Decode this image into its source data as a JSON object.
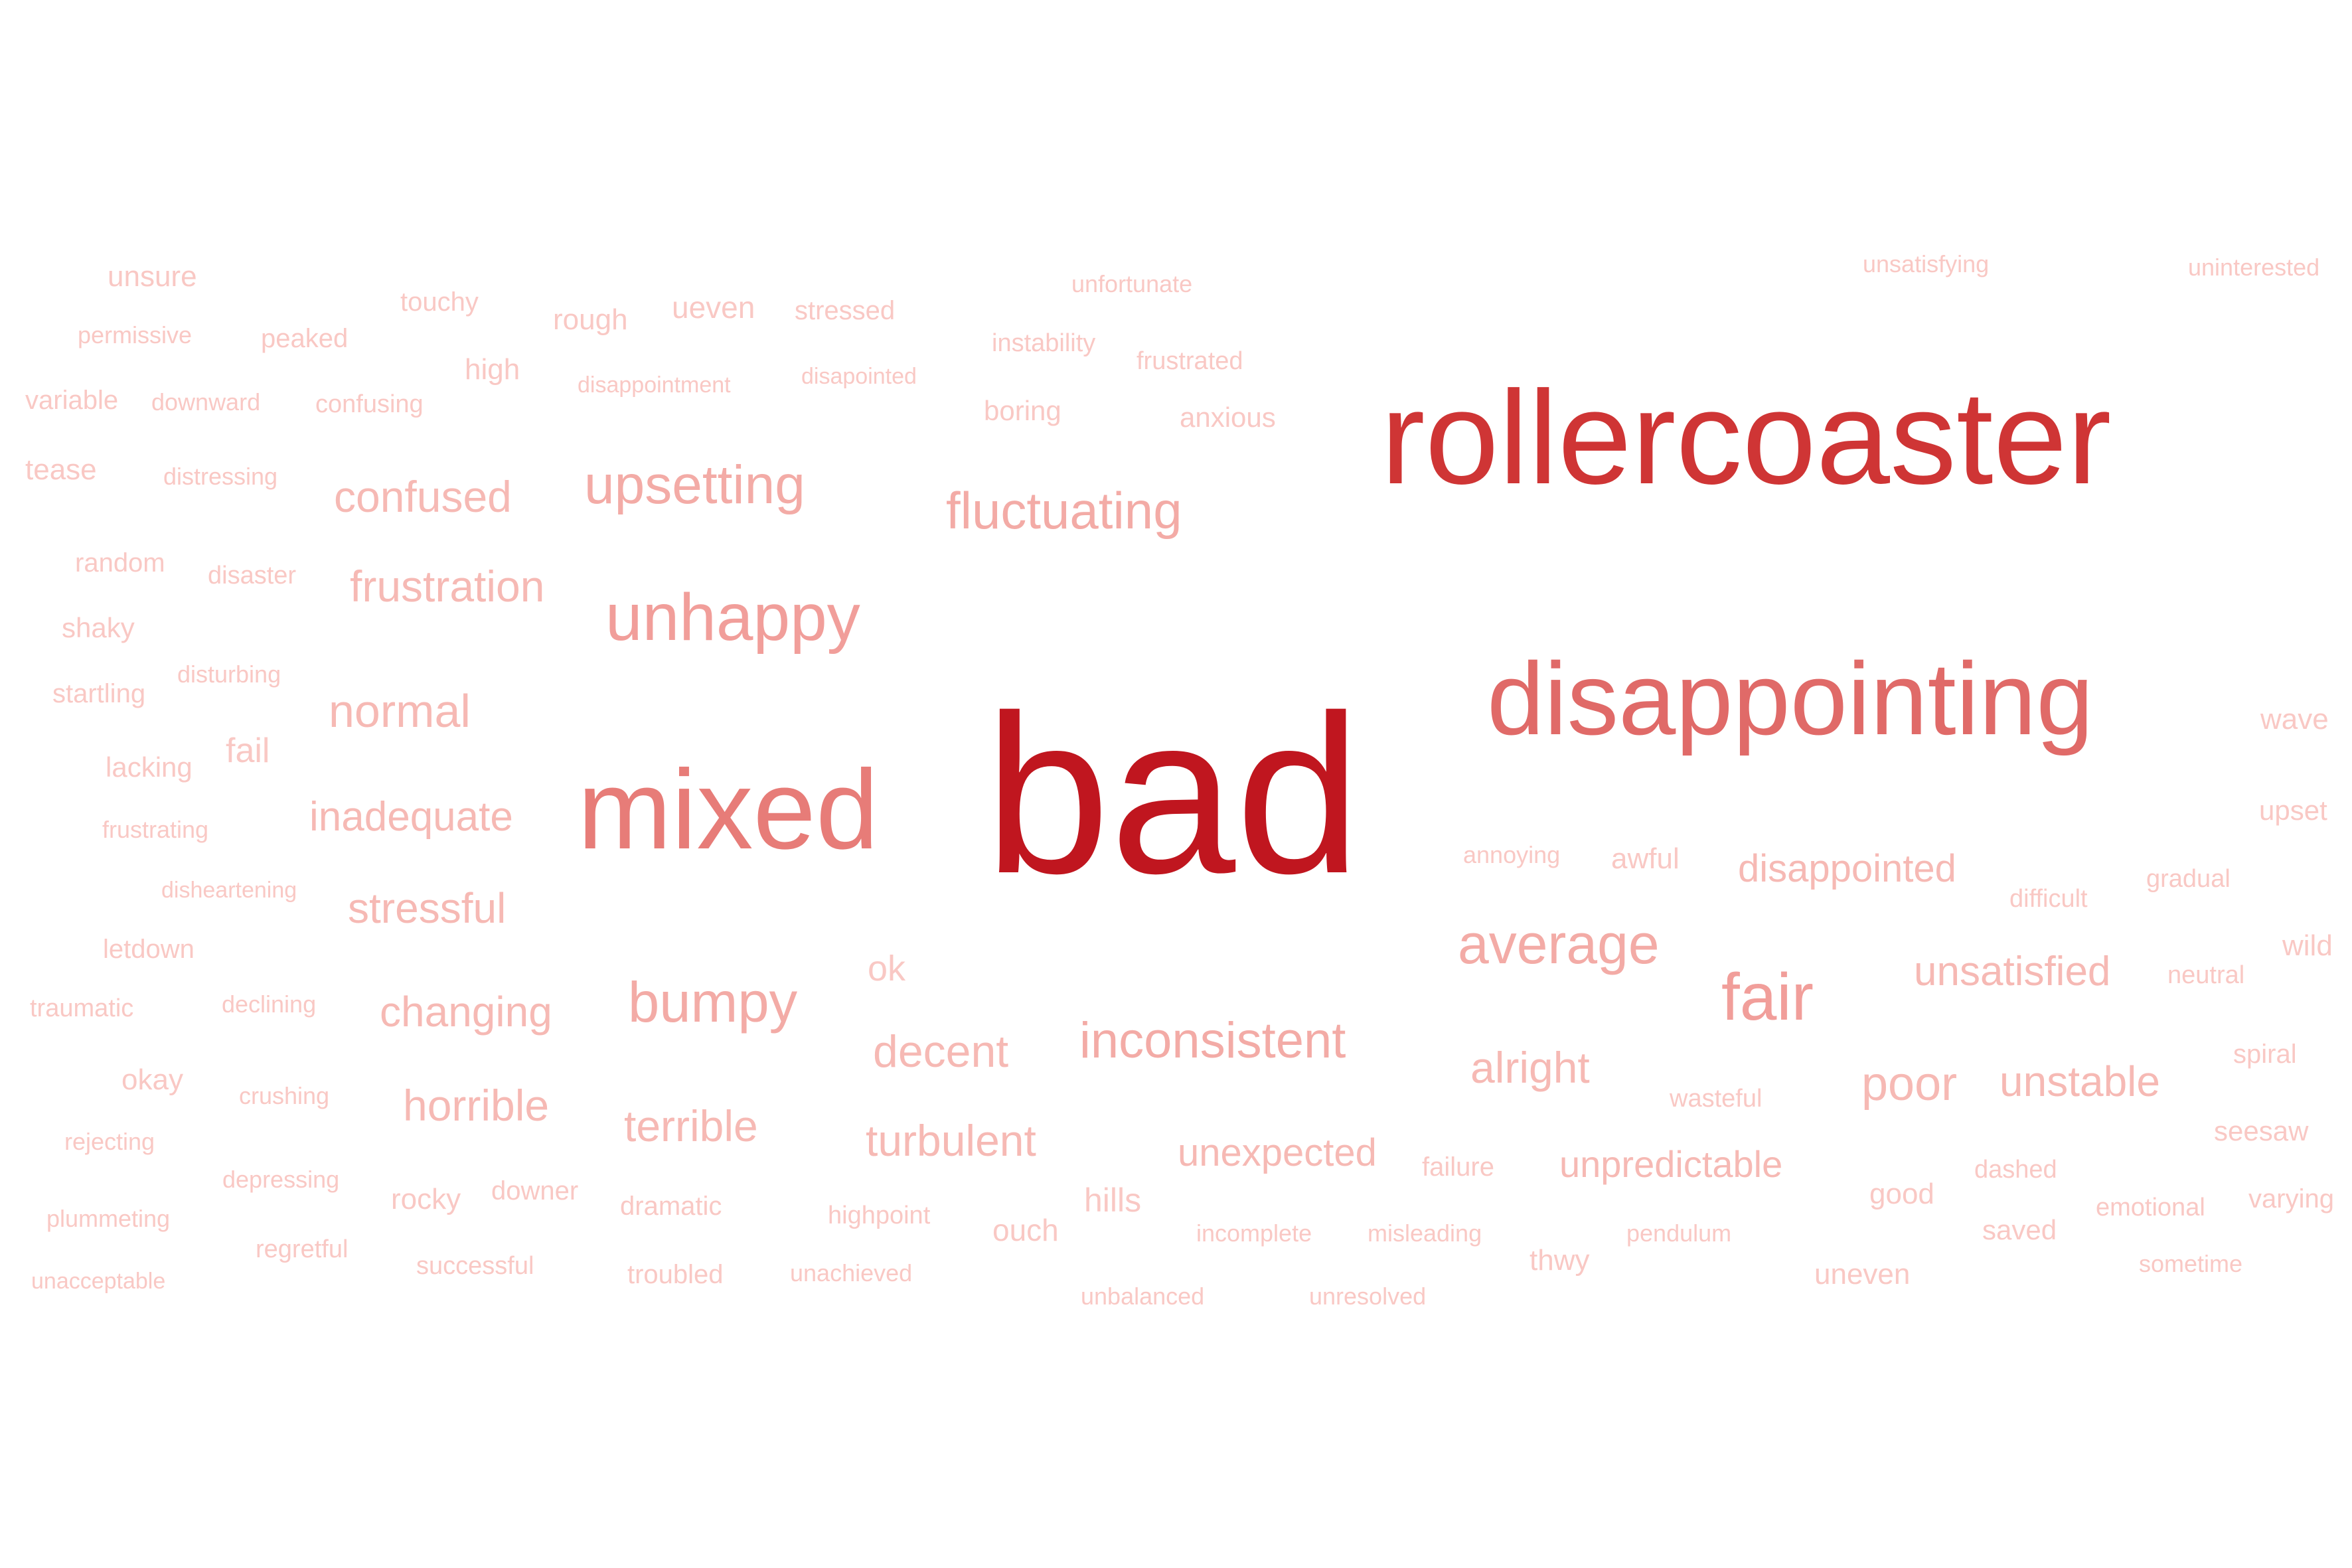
{
  "word_cloud": {
    "words": [
      {
        "text": "bad",
        "color": "#c0161f"
      },
      {
        "text": "rollercoaster",
        "color": "#cf3535"
      },
      {
        "text": "disappointing",
        "color": "#e06a68"
      },
      {
        "text": "mixed",
        "color": "#e77c78"
      },
      {
        "text": "unhappy",
        "color": "#f19e9a"
      },
      {
        "text": "fluctuating",
        "color": "#f3aba6"
      },
      {
        "text": "upsetting",
        "color": "#f3aba6"
      },
      {
        "text": "fair",
        "color": "#f19e9a"
      },
      {
        "text": "average",
        "color": "#f3aba6"
      },
      {
        "text": "bumpy",
        "color": "#f3aba6"
      },
      {
        "text": "inconsistent",
        "color": "#f3aba6"
      },
      {
        "text": "confused",
        "color": "#f6b9b4"
      },
      {
        "text": "frustration",
        "color": "#f6b9b4"
      },
      {
        "text": "normal",
        "color": "#f6b9b4"
      },
      {
        "text": "inadequate",
        "color": "#f6b9b4"
      },
      {
        "text": "stressful",
        "color": "#f6b9b4"
      },
      {
        "text": "changing",
        "color": "#f6b9b4"
      },
      {
        "text": "horrible",
        "color": "#f6b9b4"
      },
      {
        "text": "terrible",
        "color": "#f6b9b4"
      },
      {
        "text": "decent",
        "color": "#f6b9b4"
      },
      {
        "text": "turbulent",
        "color": "#f6b9b4"
      },
      {
        "text": "unexpected",
        "color": "#f6b9b4"
      },
      {
        "text": "unpredictable",
        "color": "#f6b9b4"
      },
      {
        "text": "alright",
        "color": "#f6b9b4"
      },
      {
        "text": "poor",
        "color": "#f6b9b4"
      },
      {
        "text": "unstable",
        "color": "#f6b9b4"
      },
      {
        "text": "unsatisfied",
        "color": "#f6b9b4"
      },
      {
        "text": "disappointed",
        "color": "#f6b9b4"
      },
      {
        "text": "unsure",
        "color": "#f9c8c4"
      },
      {
        "text": "touchy",
        "color": "#f9c8c4"
      },
      {
        "text": "rough",
        "color": "#f9c8c4"
      },
      {
        "text": "ueven",
        "color": "#f9c8c4"
      },
      {
        "text": "stressed",
        "color": "#f9c8c4"
      },
      {
        "text": "unfortunate",
        "color": "#f9c8c4"
      },
      {
        "text": "unsatisfying",
        "color": "#f9c8c4"
      },
      {
        "text": "uninterested",
        "color": "#f9c8c4"
      },
      {
        "text": "permissive",
        "color": "#f9c8c4"
      },
      {
        "text": "peaked",
        "color": "#f9c8c4"
      },
      {
        "text": "high",
        "color": "#f9c8c4"
      },
      {
        "text": "instability",
        "color": "#f9c8c4"
      },
      {
        "text": "frustrated",
        "color": "#f9c8c4"
      },
      {
        "text": "disappointment",
        "color": "#f9c8c4"
      },
      {
        "text": "disapointed",
        "color": "#f9c8c4"
      },
      {
        "text": "variable",
        "color": "#f9c8c4"
      },
      {
        "text": "downward",
        "color": "#f9c8c4"
      },
      {
        "text": "confusing",
        "color": "#f9c8c4"
      },
      {
        "text": "boring",
        "color": "#f9c8c4"
      },
      {
        "text": "anxious",
        "color": "#f9c8c4"
      },
      {
        "text": "tease",
        "color": "#f9c8c4"
      },
      {
        "text": "distressing",
        "color": "#f9c8c4"
      },
      {
        "text": "random",
        "color": "#f9c8c4"
      },
      {
        "text": "disaster",
        "color": "#f9c8c4"
      },
      {
        "text": "shaky",
        "color": "#f9c8c4"
      },
      {
        "text": "disturbing",
        "color": "#f9c8c4"
      },
      {
        "text": "startling",
        "color": "#f9c8c4"
      },
      {
        "text": "fail",
        "color": "#f9c8c4"
      },
      {
        "text": "lacking",
        "color": "#f9c8c4"
      },
      {
        "text": "frustrating",
        "color": "#f9c8c4"
      },
      {
        "text": "disheartening",
        "color": "#f9c8c4"
      },
      {
        "text": "letdown",
        "color": "#f9c8c4"
      },
      {
        "text": "traumatic",
        "color": "#f9c8c4"
      },
      {
        "text": "declining",
        "color": "#f9c8c4"
      },
      {
        "text": "okay",
        "color": "#f9c8c4"
      },
      {
        "text": "crushing",
        "color": "#f9c8c4"
      },
      {
        "text": "rejecting",
        "color": "#f9c8c4"
      },
      {
        "text": "depressing",
        "color": "#f9c8c4"
      },
      {
        "text": "rocky",
        "color": "#f9c8c4"
      },
      {
        "text": "downer",
        "color": "#f9c8c4"
      },
      {
        "text": "plummeting",
        "color": "#f9c8c4"
      },
      {
        "text": "regretful",
        "color": "#f9c8c4"
      },
      {
        "text": "successful",
        "color": "#f9c8c4"
      },
      {
        "text": "unacceptable",
        "color": "#f9c8c4"
      },
      {
        "text": "ok",
        "color": "#f9c8c4"
      },
      {
        "text": "dramatic",
        "color": "#f9c8c4"
      },
      {
        "text": "highpoint",
        "color": "#f9c8c4"
      },
      {
        "text": "troubled",
        "color": "#f9c8c4"
      },
      {
        "text": "unachieved",
        "color": "#f9c8c4"
      },
      {
        "text": "ouch",
        "color": "#f9c8c4"
      },
      {
        "text": "hills",
        "color": "#f9c8c4"
      },
      {
        "text": "incomplete",
        "color": "#f9c8c4"
      },
      {
        "text": "misleading",
        "color": "#f9c8c4"
      },
      {
        "text": "unbalanced",
        "color": "#f9c8c4"
      },
      {
        "text": "unresolved",
        "color": "#f9c8c4"
      },
      {
        "text": "failure",
        "color": "#f9c8c4"
      },
      {
        "text": "wasteful",
        "color": "#f9c8c4"
      },
      {
        "text": "thwy",
        "color": "#f9c8c4"
      },
      {
        "text": "pendulum",
        "color": "#f9c8c4"
      },
      {
        "text": "uneven",
        "color": "#f9c8c4"
      },
      {
        "text": "annoying",
        "color": "#f9c8c4"
      },
      {
        "text": "awful",
        "color": "#f9c8c4"
      },
      {
        "text": "difficult",
        "color": "#f9c8c4"
      },
      {
        "text": "gradual",
        "color": "#f9c8c4"
      },
      {
        "text": "wave",
        "color": "#f9c8c4"
      },
      {
        "text": "upset",
        "color": "#f9c8c4"
      },
      {
        "text": "wild",
        "color": "#f9c8c4"
      },
      {
        "text": "neutral",
        "color": "#f9c8c4"
      },
      {
        "text": "spiral",
        "color": "#f9c8c4"
      },
      {
        "text": "seesaw",
        "color": "#f9c8c4"
      },
      {
        "text": "good",
        "color": "#f9c8c4"
      },
      {
        "text": "dashed",
        "color": "#f9c8c4"
      },
      {
        "text": "emotional",
        "color": "#f9c8c4"
      },
      {
        "text": "varying",
        "color": "#f9c8c4"
      },
      {
        "text": "saved",
        "color": "#f9c8c4"
      },
      {
        "text": "sometime",
        "color": "#f9c8c4"
      }
    ]
  }
}
